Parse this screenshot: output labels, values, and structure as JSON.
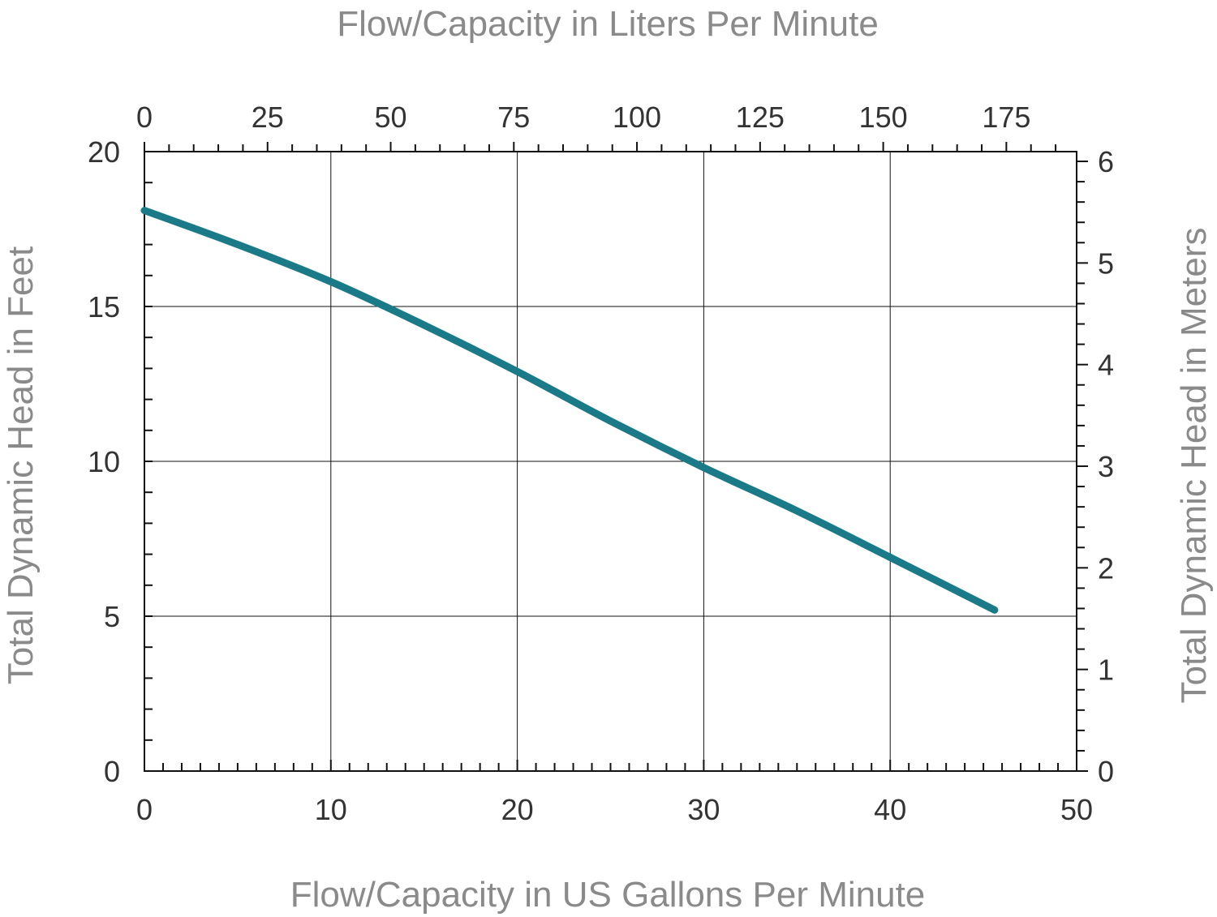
{
  "chart_data": {
    "type": "line",
    "title": "",
    "xlabel": "Flow/Capacity in US Gallons Per Minute",
    "ylabel": "Total Dynamic Head in Feet",
    "x2label": "Flow/Capacity in Liters Per Minute",
    "y2label": "Total Dynamic Head in Meters",
    "xlim": [
      0,
      50
    ],
    "ylim": [
      0,
      20
    ],
    "x2lim": [
      0,
      189.27
    ],
    "y2lim": [
      0,
      6.096
    ],
    "x_ticks": [
      0,
      10,
      20,
      30,
      40,
      50
    ],
    "y_ticks": [
      0,
      5,
      10,
      15,
      20
    ],
    "x2_ticks": [
      0,
      25,
      50,
      75,
      100,
      125,
      150,
      175
    ],
    "y2_ticks": [
      0,
      1,
      2,
      3,
      4,
      5,
      6
    ],
    "grid": true,
    "line_color": "#1b7a88",
    "series": [
      {
        "x": [
          0,
          5,
          10,
          15,
          20,
          25,
          30,
          35,
          40,
          45.6
        ],
        "values": [
          18.1,
          17.0,
          15.8,
          14.4,
          12.9,
          11.3,
          9.8,
          8.4,
          6.9,
          5.2
        ]
      }
    ]
  }
}
